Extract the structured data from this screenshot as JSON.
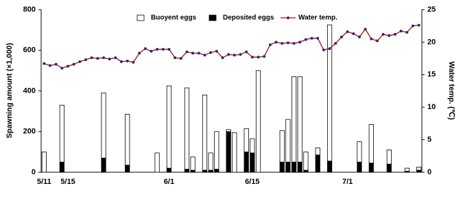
{
  "chart_data": {
    "type": "bar-line",
    "x_label_left": "Spawning amount (×1,000)",
    "y2_label": "Water temp. (℃)",
    "categories": [
      "5/11",
      null,
      null,
      null,
      "5/15",
      null,
      null,
      null,
      null,
      null,
      null,
      null,
      null,
      null,
      null,
      null,
      null,
      null,
      null,
      null,
      null,
      "6/1",
      null,
      null,
      null,
      null,
      null,
      null,
      null,
      null,
      null,
      null,
      null,
      null,
      null,
      "6/15",
      null,
      null,
      null,
      null,
      null,
      null,
      null,
      null,
      null,
      null,
      null,
      null,
      null,
      null,
      null,
      "7/1",
      null,
      null,
      null,
      null,
      null,
      null,
      null,
      null,
      null,
      null,
      null,
      null
    ],
    "series": [
      {
        "name": "Deposited eggs",
        "color": "#000000",
        "kind": "bar",
        "values": [
          null,
          null,
          null,
          50,
          null,
          null,
          null,
          null,
          null,
          null,
          70,
          null,
          null,
          null,
          35,
          null,
          null,
          null,
          null,
          null,
          null,
          20,
          null,
          null,
          15,
          10,
          null,
          10,
          10,
          15,
          null,
          200,
          null,
          null,
          100,
          95,
          null,
          null,
          null,
          null,
          50,
          50,
          50,
          50,
          10,
          null,
          85,
          null,
          55,
          null,
          null,
          null,
          null,
          50,
          null,
          45,
          null,
          null,
          40,
          null,
          null,
          5,
          null,
          10
        ]
      },
      {
        "name": "Buoyent eggs",
        "color": "#ffffff",
        "kind": "bar",
        "values": [
          100,
          null,
          null,
          280,
          null,
          null,
          null,
          null,
          null,
          null,
          320,
          null,
          null,
          null,
          250,
          null,
          null,
          null,
          null,
          95,
          null,
          405,
          null,
          null,
          400,
          65,
          null,
          370,
          85,
          185,
          null,
          10,
          195,
          null,
          115,
          70,
          500,
          null,
          null,
          null,
          155,
          210,
          420,
          420,
          90,
          null,
          35,
          null,
          670,
          null,
          null,
          null,
          null,
          100,
          null,
          190,
          null,
          null,
          70,
          null,
          null,
          15,
          null,
          15
        ]
      },
      {
        "name": "Water temp.",
        "color": "#c00000",
        "marker_color": "#2a2a7a",
        "kind": "line",
        "axis": "y2",
        "values": [
          16.7,
          16.4,
          16.6,
          16.0,
          16.3,
          16.6,
          17.0,
          17.3,
          17.6,
          17.5,
          17.6,
          17.4,
          17.6,
          17.0,
          17.1,
          16.9,
          18.3,
          19.0,
          18.6,
          18.9,
          18.9,
          18.9,
          17.6,
          17.5,
          18.5,
          18.3,
          18.3,
          18.0,
          18.4,
          18.6,
          17.6,
          18.1,
          18.0,
          18.1,
          18.5,
          17.7,
          17.7,
          17.8,
          19.6,
          20.0,
          19.8,
          19.9,
          19.8,
          20.0,
          20.4,
          20.6,
          20.6,
          18.8,
          19.0,
          19.8,
          20.8,
          21.6,
          21.3,
          20.8,
          22.0,
          20.5,
          20.2,
          21.2,
          21.0,
          21.2,
          21.7,
          21.5,
          22.5,
          22.6
        ]
      }
    ],
    "ylim": [
      0,
      800
    ],
    "yticks": [
      0,
      200,
      400,
      600,
      800
    ],
    "y2lim": [
      0,
      25
    ],
    "y2ticks": [
      0,
      5,
      10,
      15,
      20,
      25
    ]
  }
}
